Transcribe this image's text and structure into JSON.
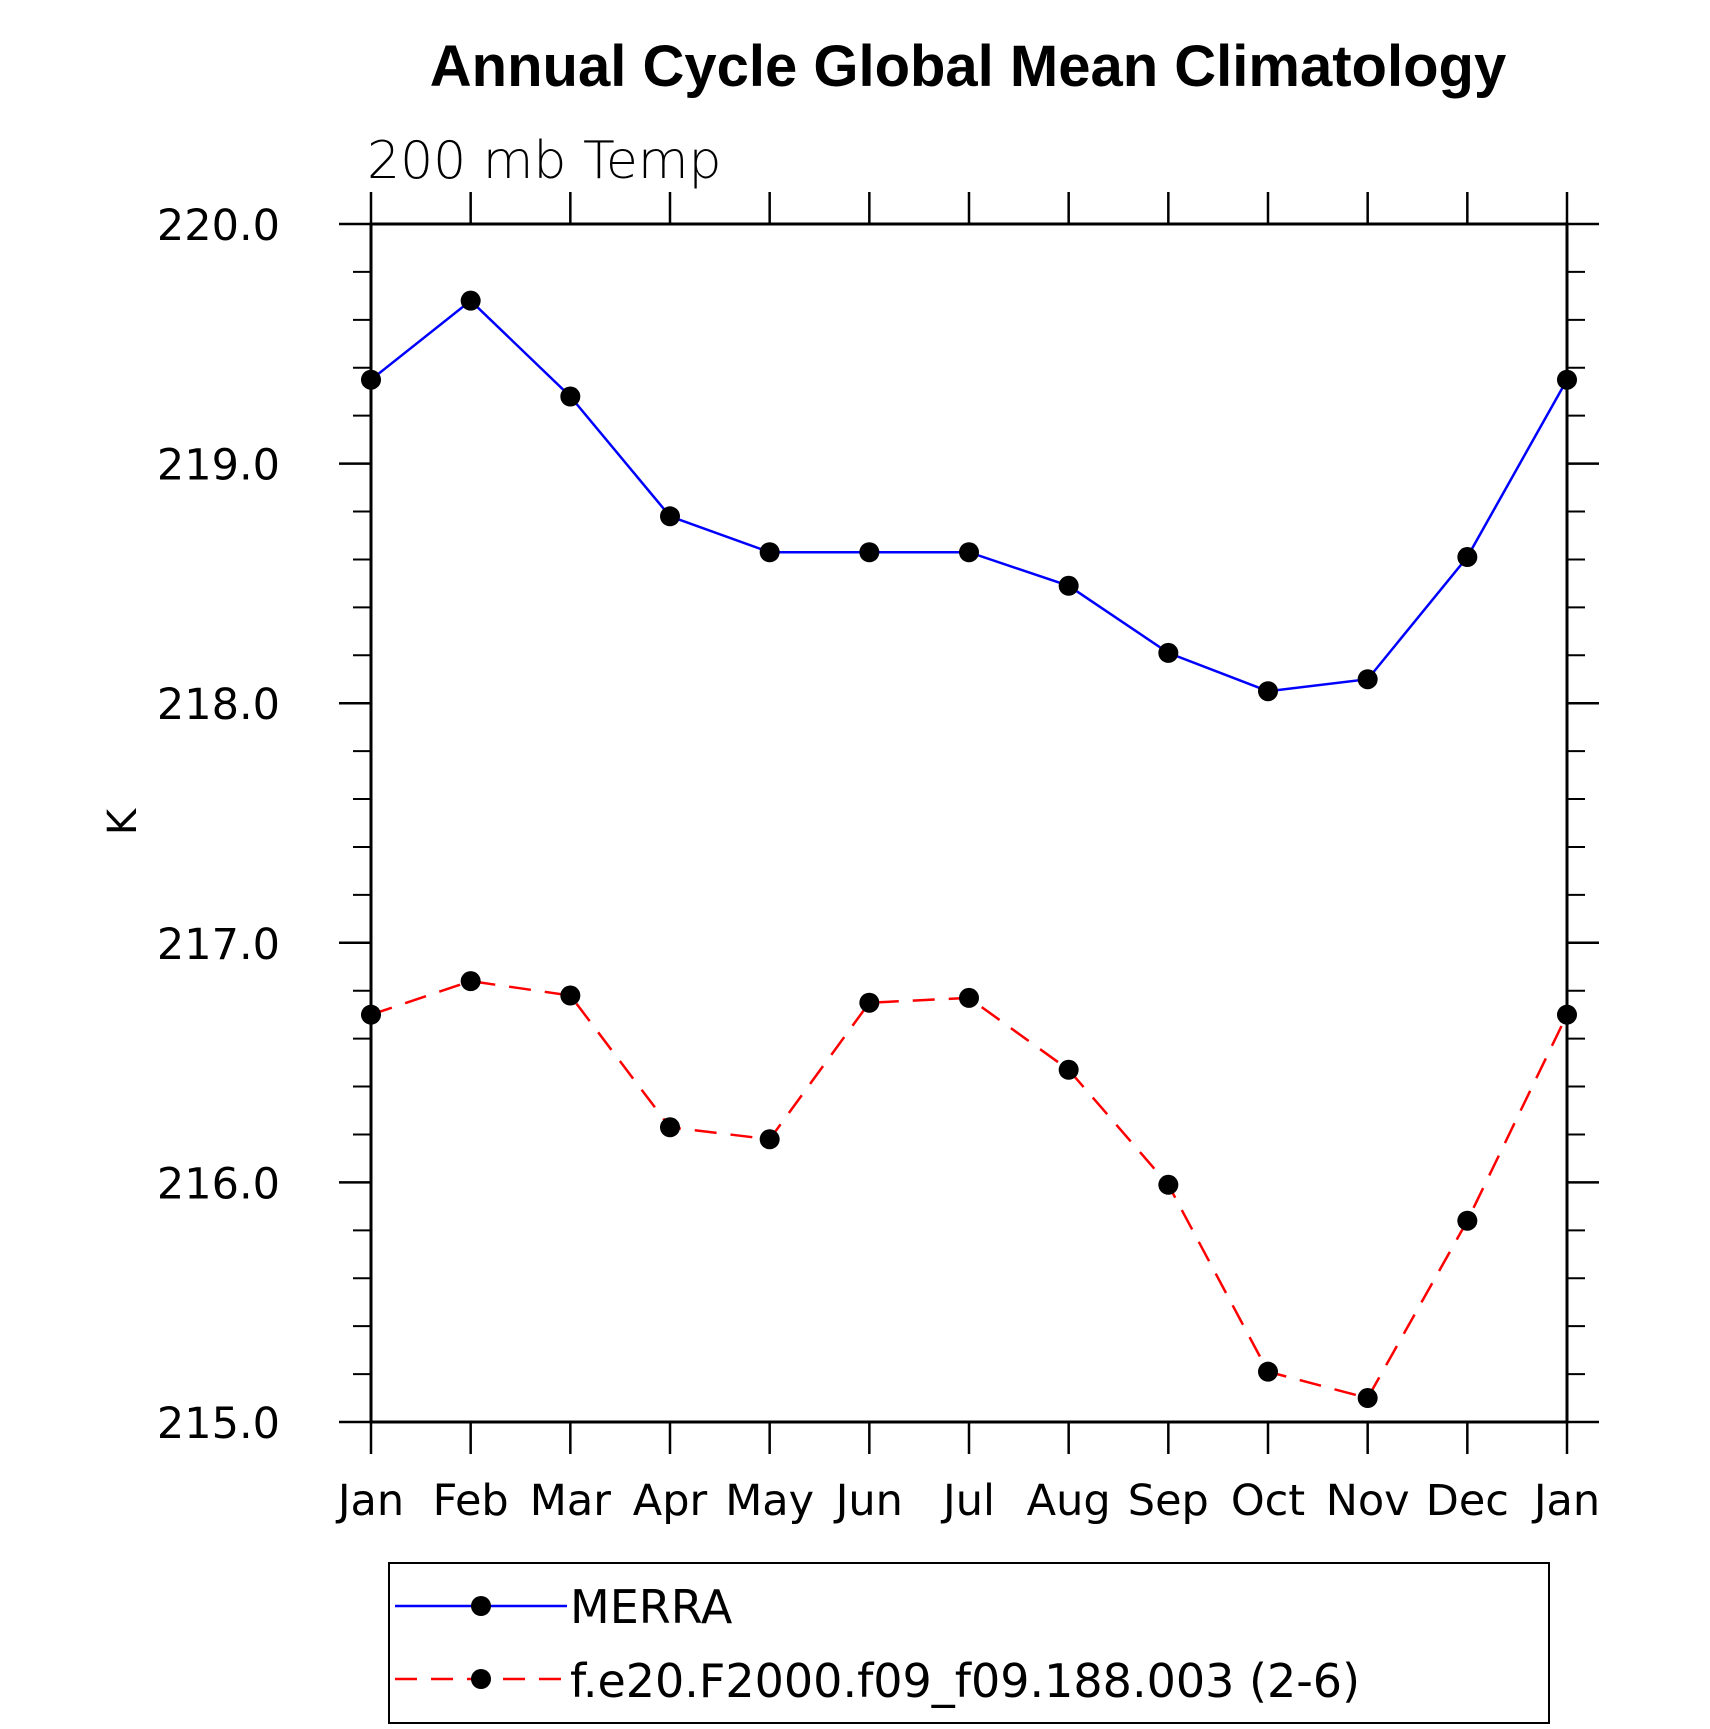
{
  "chart_data": {
    "type": "line",
    "title": "Annual Cycle Global Mean Climatology",
    "subtitle": "200 mb Temp",
    "ylabel": "K",
    "xlabel": "",
    "categories": [
      "Jan",
      "Feb",
      "Mar",
      "Apr",
      "May",
      "Jun",
      "Jul",
      "Aug",
      "Sep",
      "Oct",
      "Nov",
      "Dec",
      "Jan"
    ],
    "ylim": [
      215.0,
      220.0
    ],
    "yticks": [
      "215.0",
      "216.0",
      "217.0",
      "218.0",
      "219.0",
      "220.0"
    ],
    "grid": false,
    "legend_position": "bottom",
    "series": [
      {
        "name": "MERRA",
        "color": "#0000ff",
        "line_style": "solid",
        "marker": "filled-circle",
        "values": [
          219.35,
          219.68,
          219.28,
          218.78,
          218.63,
          218.63,
          218.63,
          218.49,
          218.21,
          218.05,
          218.1,
          218.61,
          219.35
        ]
      },
      {
        "name": "f.e20.F2000.f09_f09.188.003 (2-6)",
        "color": "#ff0000",
        "line_style": "dashed",
        "marker": "filled-circle",
        "values": [
          216.7,
          216.84,
          216.78,
          216.23,
          216.18,
          216.75,
          216.77,
          216.47,
          215.99,
          215.21,
          215.1,
          215.84,
          216.7
        ]
      }
    ]
  }
}
